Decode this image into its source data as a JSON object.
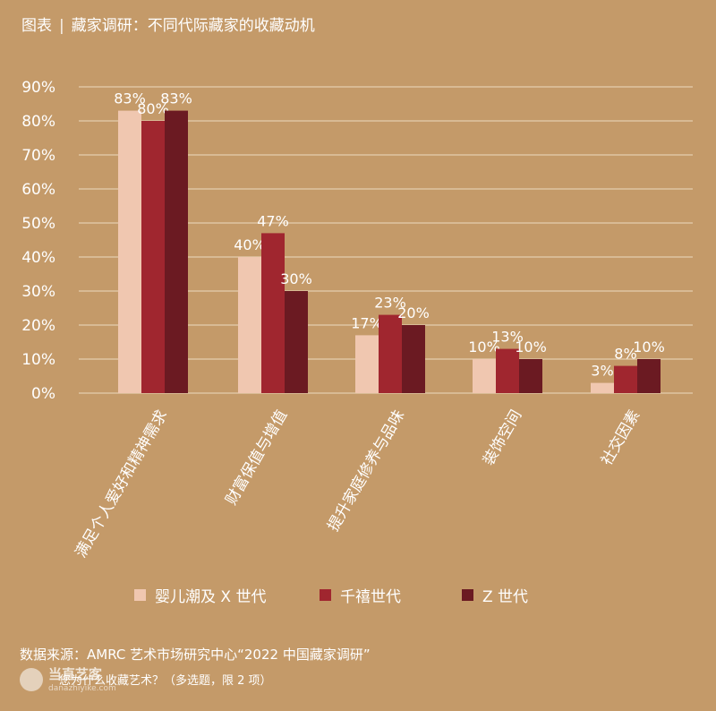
{
  "header": {
    "label": "图表",
    "separator": "|",
    "title": "藏家调研：不同代际藏家的收藏动机"
  },
  "chart_data": {
    "type": "bar",
    "title": "藏家调研：不同代际藏家的收藏动机",
    "categories": [
      "满足个人爱好和精神需求",
      "财富保值与增值",
      "提升家庭修养与品味",
      "装饰空间",
      "社交因素"
    ],
    "series": [
      {
        "name": "婴儿潮及 X 世代",
        "values": [
          83,
          40,
          17,
          10,
          3
        ],
        "labels": [
          "83%",
          "40%",
          "17%",
          "10%",
          "3%"
        ],
        "color": "#F0C7B0"
      },
      {
        "name": "千禧世代",
        "values": [
          80,
          47,
          23,
          13,
          8
        ],
        "labels": [
          "80%",
          "47%",
          "23%",
          "13%",
          "8%"
        ],
        "color": "#A0262F"
      },
      {
        "name": "Z 世代",
        "values": [
          83,
          30,
          20,
          10,
          10
        ],
        "labels": [
          "83%",
          "30%",
          "20%",
          "10%",
          "10%"
        ],
        "color": "#6B1A22"
      }
    ],
    "ylim": [
      0,
      90
    ],
    "yticks": [
      "0%",
      "10%",
      "20%",
      "30%",
      "40%",
      "50%",
      "60%",
      "70%",
      "80%",
      "90%"
    ],
    "grid": true,
    "legend_position": "bottom"
  },
  "footer": {
    "source": "数据来源：AMRC 艺术市场研究中心“2022 中国藏家调研”",
    "question": "您为什么收藏艺术？（多选题，限 2 项）"
  },
  "watermark": {
    "name": "当直艺客",
    "sub": "danazhiyike.com"
  }
}
